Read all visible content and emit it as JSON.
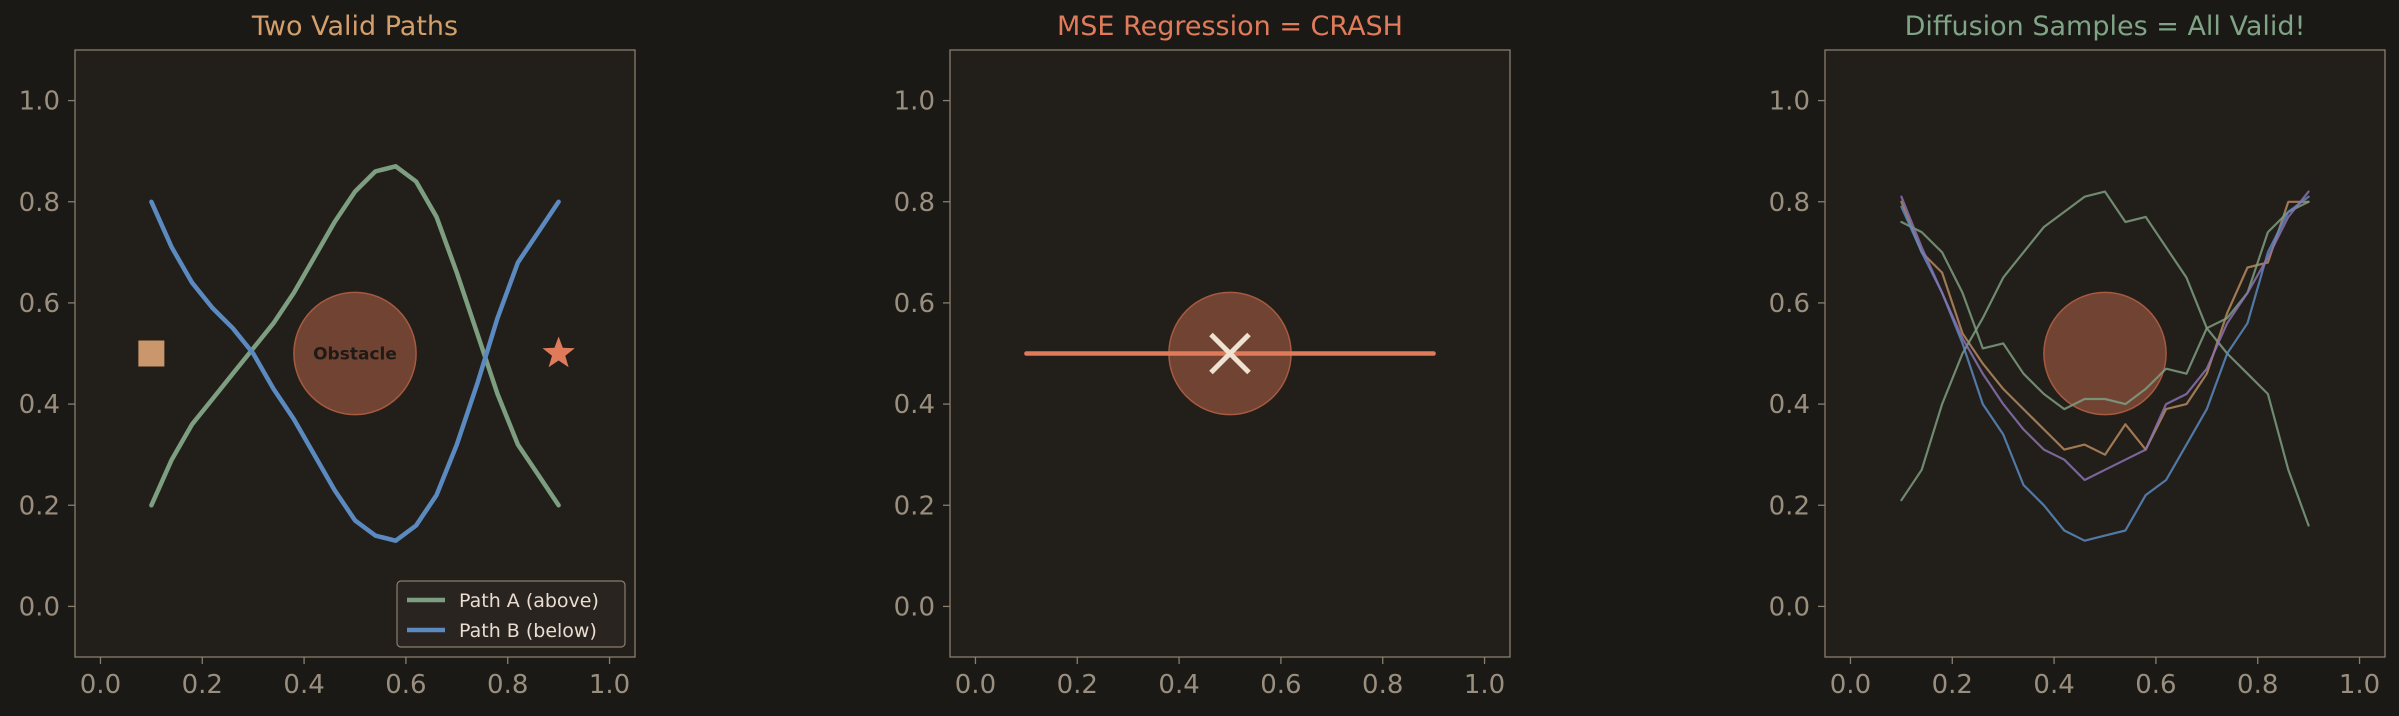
{
  "colors": {
    "background": "#1a1915",
    "axes_face": "#221e19",
    "spine": "#8a7d6e",
    "tick_text": "#9a8e7e",
    "obstacle_fill": "#7a4736",
    "obstacle_edge": "#a65a40",
    "path_a": "#7d9e80",
    "path_b": "#5b8ac0",
    "start": "#c9976b",
    "goal": "#df7a5a",
    "mse_line": "#df7a5a",
    "cross": "#f0e2d0",
    "title_1": "#d49f6a",
    "title_2": "#e27b5a",
    "title_3": "#7fa486",
    "legend_text": "#e8ddd0",
    "obstacle_label": "#1e1a15",
    "sample_1": "#b58a5e",
    "sample_2": "#7d9e80",
    "sample_3": "#5b8ac0",
    "sample_4": "#8a72b0"
  },
  "chart_data": [
    {
      "type": "line",
      "title": "Two Valid Paths",
      "xlim": [
        -0.05,
        1.05
      ],
      "ylim": [
        -0.1,
        1.1
      ],
      "xticks": [
        "0.0",
        "0.2",
        "0.4",
        "0.6",
        "0.8",
        "1.0"
      ],
      "yticks": [
        "0.0",
        "0.2",
        "0.4",
        "0.6",
        "0.8",
        "1.0"
      ],
      "obstacle": {
        "cx": 0.5,
        "cy": 0.5,
        "r": 0.12,
        "label": "Obstacle"
      },
      "start": {
        "x": 0.1,
        "y": 0.5,
        "marker": "square"
      },
      "goal": {
        "x": 0.9,
        "y": 0.5,
        "marker": "star"
      },
      "legend": "bottom-right",
      "series": [
        {
          "name": "Path A (above)",
          "color": "path_a",
          "x": [
            0.1,
            0.14,
            0.18,
            0.22,
            0.26,
            0.3,
            0.34,
            0.38,
            0.42,
            0.46,
            0.5,
            0.54,
            0.58,
            0.62,
            0.66,
            0.7,
            0.74,
            0.78,
            0.82,
            0.86,
            0.9
          ],
          "y": [
            0.2,
            0.29,
            0.36,
            0.41,
            0.46,
            0.51,
            0.56,
            0.62,
            0.69,
            0.76,
            0.82,
            0.86,
            0.87,
            0.84,
            0.77,
            0.66,
            0.54,
            0.42,
            0.32,
            0.26,
            0.2
          ]
        },
        {
          "name": "Path B (below)",
          "color": "path_b",
          "x": [
            0.1,
            0.14,
            0.18,
            0.22,
            0.26,
            0.3,
            0.34,
            0.38,
            0.42,
            0.46,
            0.5,
            0.54,
            0.58,
            0.62,
            0.66,
            0.7,
            0.74,
            0.78,
            0.82,
            0.86,
            0.9
          ],
          "y": [
            0.8,
            0.71,
            0.64,
            0.59,
            0.55,
            0.5,
            0.43,
            0.37,
            0.3,
            0.23,
            0.17,
            0.14,
            0.13,
            0.16,
            0.22,
            0.32,
            0.44,
            0.57,
            0.68,
            0.74,
            0.8
          ]
        }
      ]
    },
    {
      "type": "line",
      "title": "MSE Regression = CRASH",
      "xlim": [
        -0.05,
        1.05
      ],
      "ylim": [
        -0.1,
        1.1
      ],
      "xticks": [
        "0.0",
        "0.2",
        "0.4",
        "0.6",
        "0.8",
        "1.0"
      ],
      "yticks": [
        "0.0",
        "0.2",
        "0.4",
        "0.6",
        "0.8",
        "1.0"
      ],
      "obstacle": {
        "cx": 0.5,
        "cy": 0.5,
        "r": 0.12,
        "label": ""
      },
      "crash_marker": {
        "x": 0.5,
        "y": 0.5,
        "marker": "x"
      },
      "series": [
        {
          "color": "mse_line",
          "x": [
            0.1,
            0.9
          ],
          "y": [
            0.5,
            0.5
          ]
        }
      ]
    },
    {
      "type": "line",
      "title": "Diffusion Samples = All Valid!",
      "xlim": [
        -0.05,
        1.05
      ],
      "ylim": [
        -0.1,
        1.1
      ],
      "xticks": [
        "0.0",
        "0.2",
        "0.4",
        "0.6",
        "0.8",
        "1.0"
      ],
      "yticks": [
        "0.0",
        "0.2",
        "0.4",
        "0.6",
        "0.8",
        "1.0"
      ],
      "obstacle": {
        "cx": 0.5,
        "cy": 0.5,
        "r": 0.12,
        "label": ""
      },
      "series": [
        {
          "color": "sample_1",
          "x": [
            0.1,
            0.14,
            0.18,
            0.22,
            0.26,
            0.3,
            0.34,
            0.38,
            0.42,
            0.46,
            0.5,
            0.54,
            0.58,
            0.62,
            0.66,
            0.7,
            0.74,
            0.78,
            0.82,
            0.86,
            0.9
          ],
          "y": [
            0.8,
            0.7,
            0.66,
            0.54,
            0.48,
            0.43,
            0.39,
            0.35,
            0.31,
            0.32,
            0.3,
            0.36,
            0.31,
            0.39,
            0.4,
            0.46,
            0.58,
            0.67,
            0.68,
            0.8,
            0.8
          ]
        },
        {
          "color": "sample_2",
          "x": [
            0.1,
            0.14,
            0.18,
            0.22,
            0.26,
            0.3,
            0.34,
            0.38,
            0.42,
            0.46,
            0.5,
            0.54,
            0.58,
            0.62,
            0.66,
            0.7,
            0.74,
            0.78,
            0.82,
            0.86,
            0.9
          ],
          "y": [
            0.76,
            0.74,
            0.7,
            0.62,
            0.51,
            0.52,
            0.46,
            0.42,
            0.39,
            0.41,
            0.41,
            0.4,
            0.43,
            0.47,
            0.46,
            0.55,
            0.57,
            0.62,
            0.74,
            0.78,
            0.8
          ]
        },
        {
          "color": "sample_2",
          "x": [
            0.1,
            0.14,
            0.18,
            0.22,
            0.26,
            0.3,
            0.34,
            0.38,
            0.42,
            0.46,
            0.5,
            0.54,
            0.58,
            0.62,
            0.66,
            0.7,
            0.74,
            0.78,
            0.82,
            0.86,
            0.9
          ],
          "y": [
            0.21,
            0.27,
            0.4,
            0.5,
            0.57,
            0.65,
            0.7,
            0.75,
            0.78,
            0.81,
            0.82,
            0.76,
            0.77,
            0.71,
            0.65,
            0.55,
            0.5,
            0.46,
            0.42,
            0.27,
            0.16
          ]
        },
        {
          "color": "sample_3",
          "x": [
            0.1,
            0.14,
            0.18,
            0.22,
            0.26,
            0.3,
            0.34,
            0.38,
            0.42,
            0.46,
            0.5,
            0.54,
            0.58,
            0.62,
            0.66,
            0.7,
            0.74,
            0.78,
            0.82,
            0.86,
            0.9
          ],
          "y": [
            0.79,
            0.7,
            0.62,
            0.52,
            0.4,
            0.34,
            0.24,
            0.2,
            0.15,
            0.13,
            0.14,
            0.15,
            0.22,
            0.25,
            0.32,
            0.39,
            0.5,
            0.56,
            0.7,
            0.78,
            0.81
          ]
        },
        {
          "color": "sample_4",
          "x": [
            0.1,
            0.14,
            0.18,
            0.22,
            0.26,
            0.3,
            0.34,
            0.38,
            0.42,
            0.46,
            0.5,
            0.54,
            0.58,
            0.62,
            0.66,
            0.7,
            0.74,
            0.78,
            0.82,
            0.86,
            0.9
          ],
          "y": [
            0.81,
            0.71,
            0.62,
            0.53,
            0.46,
            0.4,
            0.35,
            0.31,
            0.29,
            0.25,
            0.27,
            0.29,
            0.31,
            0.4,
            0.42,
            0.47,
            0.56,
            0.62,
            0.69,
            0.77,
            0.82
          ]
        }
      ]
    }
  ]
}
